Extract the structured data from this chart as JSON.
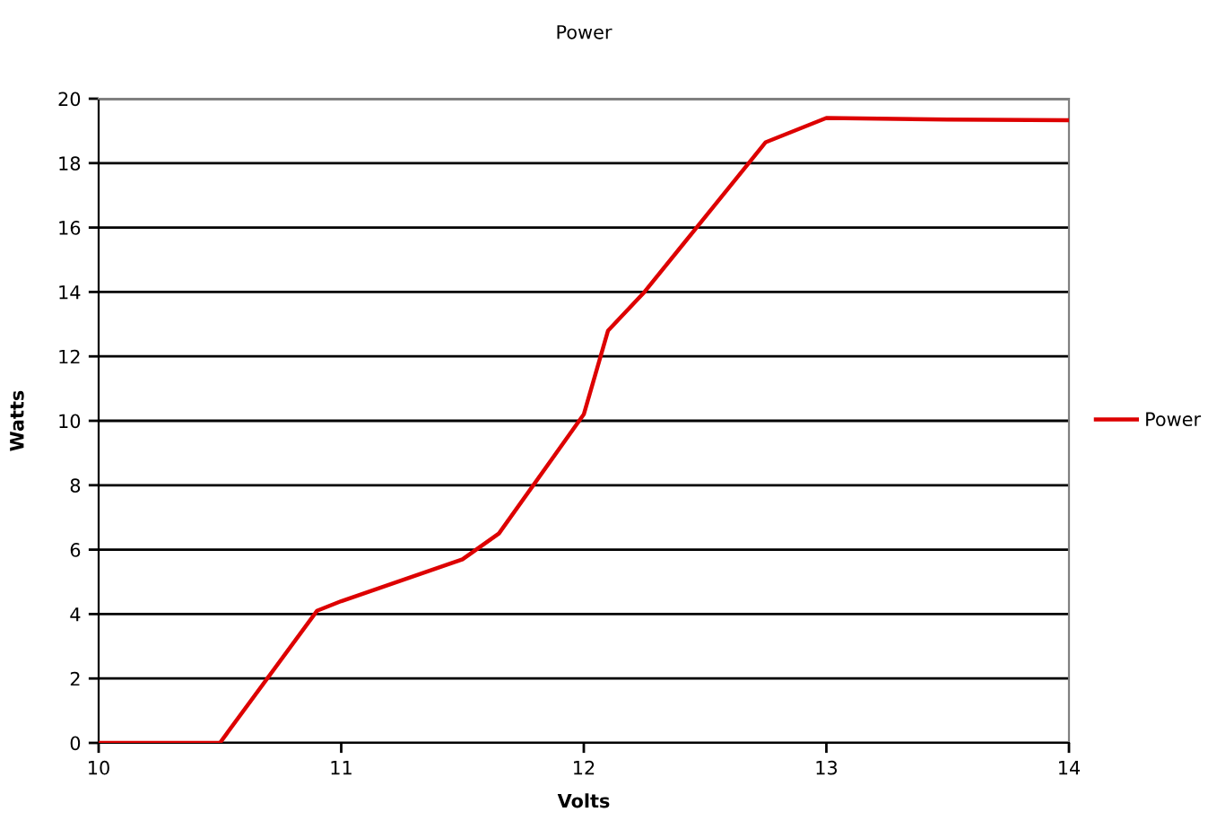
{
  "chart_data": {
    "type": "line",
    "title": "Power",
    "xlabel": "Volts",
    "ylabel": "Watts",
    "x": [
      10,
      10.5,
      10.9,
      11,
      11.5,
      11.65,
      12,
      12.1,
      12.25,
      12.75,
      13,
      13.5,
      14
    ],
    "series": [
      {
        "name": "Power",
        "color": "#dd0000",
        "values": [
          0,
          0,
          4.1,
          4.4,
          5.7,
          6.5,
          10.2,
          12.8,
          14,
          18.65,
          19.4,
          19.35,
          19.33
        ]
      }
    ],
    "xlim": [
      10,
      14
    ],
    "xticks": [
      10,
      11,
      12,
      13,
      14
    ],
    "ylim": [
      0,
      20
    ],
    "yticks": [
      0,
      2,
      4,
      6,
      8,
      10,
      12,
      14,
      16,
      18,
      20
    ],
    "grid": "y",
    "legend": "right",
    "marker": "none",
    "line_style": "solid"
  }
}
